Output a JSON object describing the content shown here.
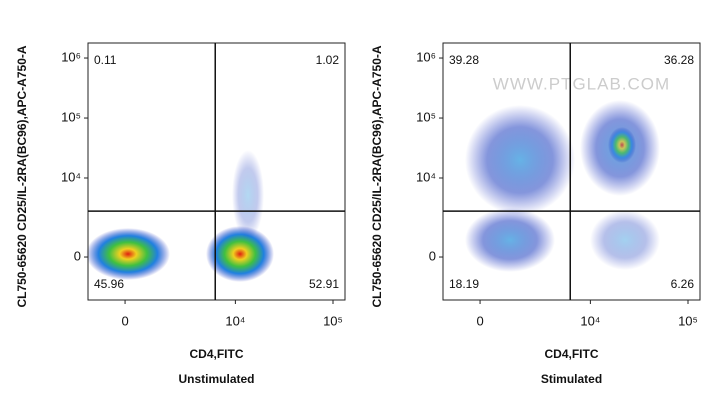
{
  "chart_data": [
    {
      "type": "quadrant-density",
      "subtitle": "Unstimulated",
      "xlabel": "CD4,FITC",
      "ylabel": "CL750-65620 CD25/IL-2RA(BC96),APC-A750-A",
      "scale": "biexponential",
      "xlim": [
        -1480,
        132600
      ],
      "ylim": [
        -2420,
        1780000
      ],
      "xticks": [
        0,
        {
          "value": 10000,
          "label": "10⁴"
        },
        {
          "value": 100000,
          "label": "10⁵"
        }
      ],
      "yticks": [
        0,
        {
          "value": 10000,
          "label": "10⁴"
        },
        {
          "value": 100000,
          "label": "10⁵"
        },
        {
          "value": 1000000,
          "label": "10⁶"
        }
      ],
      "gate_x": 6170,
      "gate_y": 2730,
      "quadrants": {
        "upper_left": 0.11,
        "upper_right": 1.02,
        "lower_left": 45.96,
        "lower_right": 52.91
      }
    },
    {
      "type": "quadrant-density",
      "subtitle": "Stimulated",
      "xlabel": "CD4,FITC",
      "ylabel": "CL750-65620 CD25/IL-2RA(BC96),APC-A750-A",
      "scale": "biexponential",
      "watermark": "WWW.PTGLAB.COM",
      "xlim": [
        -1480,
        132600
      ],
      "ylim": [
        -2420,
        1780000
      ],
      "xticks": [
        0,
        {
          "value": 10000,
          "label": "10⁴"
        },
        {
          "value": 100000,
          "label": "10⁵"
        }
      ],
      "yticks": [
        0,
        {
          "value": 10000,
          "label": "10⁴"
        },
        {
          "value": 100000,
          "label": "10⁵"
        },
        {
          "value": 1000000,
          "label": "10⁶"
        }
      ],
      "gate_x": 6170,
      "gate_y": 2730,
      "quadrants": {
        "upper_left": 39.28,
        "upper_right": 36.28,
        "lower_left": 18.19,
        "lower_right": 6.26
      }
    }
  ]
}
